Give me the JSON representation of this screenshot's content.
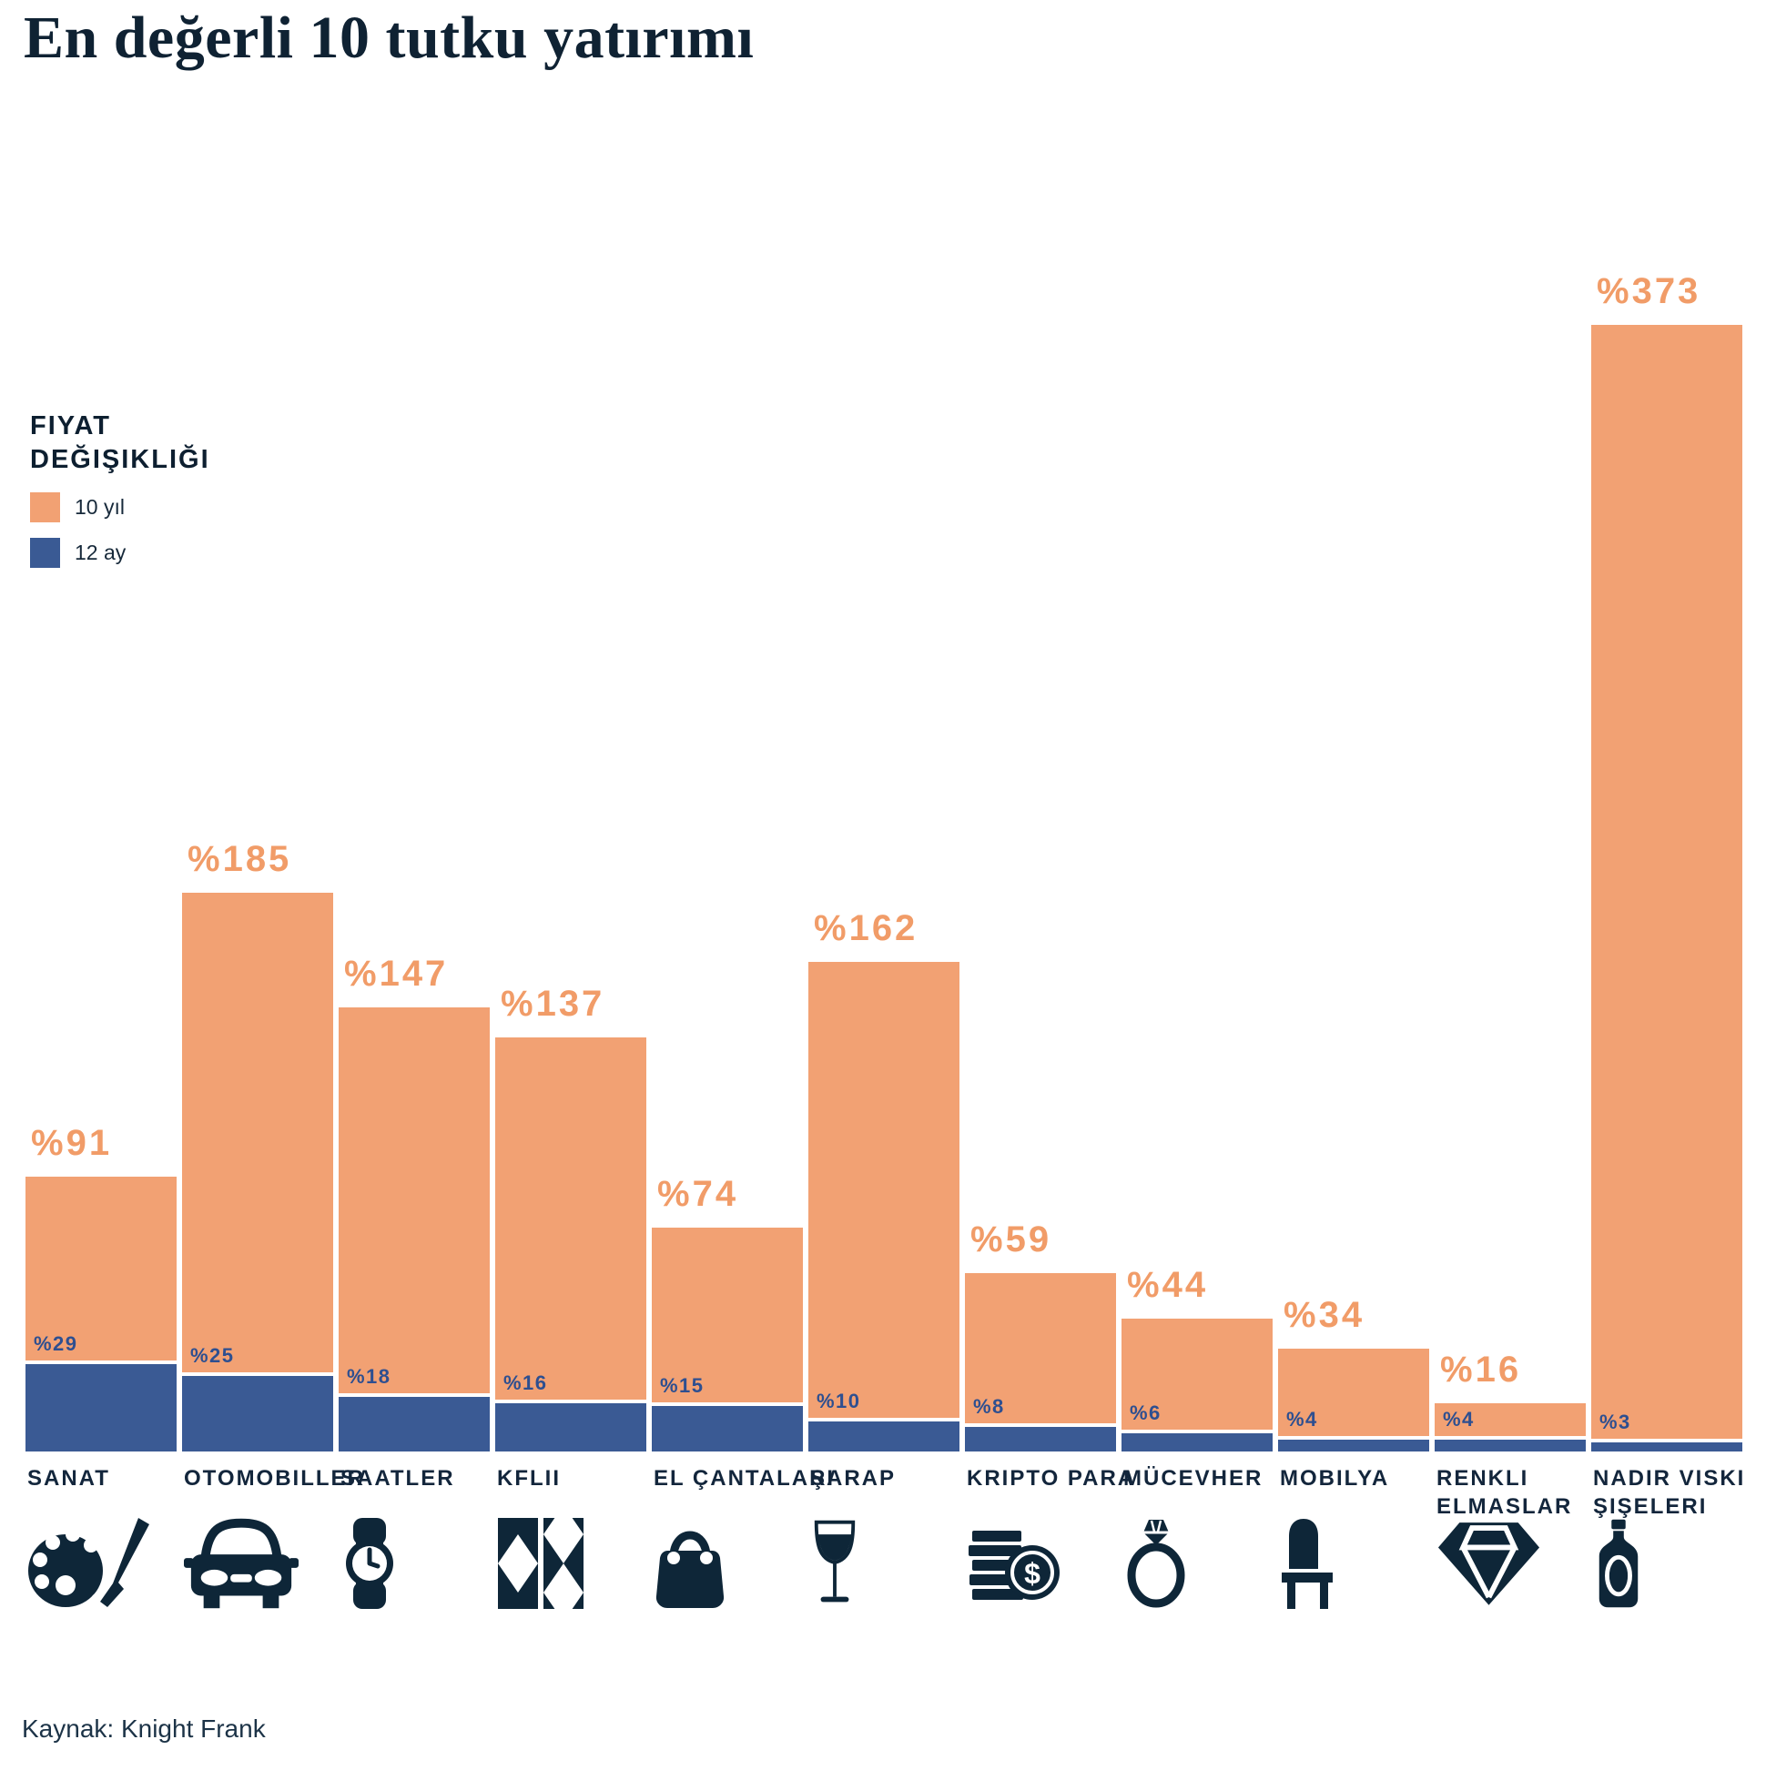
{
  "title": "En değerli 10 tutku yatırımı",
  "legend": {
    "heading": "FIYAT\nDEĞIŞIKLIĞI",
    "items": [
      {
        "label": "10 yıl",
        "color": "#F2A173"
      },
      {
        "label": "12 ay",
        "color": "#3A5A94"
      }
    ]
  },
  "source": "Kaynak: Knight Frank",
  "chart_data": {
    "type": "bar",
    "title": "En değerli 10 tutku yatırımı",
    "categories": [
      "SANAT",
      "OTOMOBILLER",
      "SAATLER",
      "KFLII",
      "EL ÇANTALARI",
      "ŞARAP",
      "KRIPTO PARA",
      "MÜCEVHER",
      "MOBILYA",
      "RENKLI\nELMASLAR",
      "NADIR VISKI\nŞIŞELERI"
    ],
    "series": [
      {
        "name": "10 yıl",
        "color": "#F2A173",
        "values": [
          91,
          185,
          147,
          137,
          74,
          162,
          59,
          44,
          34,
          16,
          373
        ]
      },
      {
        "name": "12 ay",
        "color": "#3A5A94",
        "values": [
          29,
          25,
          18,
          16,
          15,
          10,
          8,
          6,
          4,
          4,
          3
        ]
      }
    ],
    "value_prefix": "%",
    "ylim": [
      0,
      400
    ],
    "grid": false,
    "legend_position": "left-middle",
    "xlabel": "",
    "ylabel": ""
  },
  "icons": [
    "palette-icon",
    "car-icon",
    "watch-icon",
    "kflii-pattern-icon",
    "handbag-icon",
    "wine-glass-icon",
    "coins-icon",
    "ring-icon",
    "chair-icon",
    "diamond-icon",
    "whisky-bottle-icon"
  ]
}
